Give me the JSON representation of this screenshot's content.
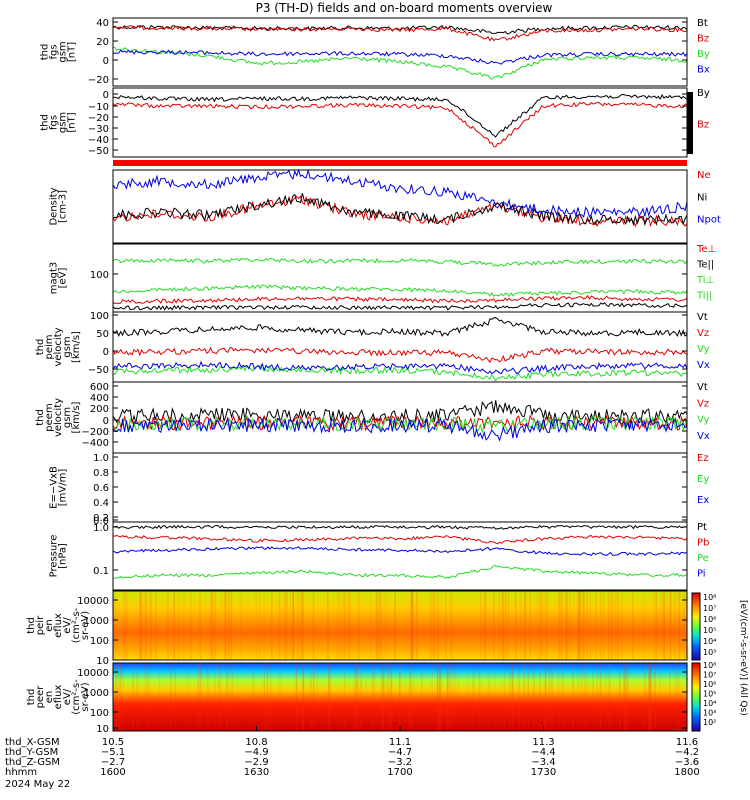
{
  "title": "P3 (TH-D) fields and on-board moments overview",
  "colors": {
    "black": "#000000",
    "red": "#e00000",
    "green": "#22dd22",
    "blue": "#0000e0"
  },
  "panels": [
    {
      "id": "fgs",
      "ylabel": [
        "thd",
        "fgs",
        "gsm",
        "[nT]"
      ],
      "ticks": [
        "40",
        "20",
        "0",
        "−20"
      ],
      "legend": [
        {
          "text": "Bt",
          "color": "black"
        },
        {
          "text": "Bz",
          "color": "red"
        },
        {
          "text": "By",
          "color": "green"
        },
        {
          "text": "Bx",
          "color": "blue"
        }
      ]
    },
    {
      "id": "fgs2",
      "ylabel": [
        "thd",
        "fgs",
        "gsm",
        "[nT]"
      ],
      "ticks": [
        "0",
        "−10",
        "−20",
        "−30",
        "−40",
        "−50"
      ],
      "legend": [
        {
          "text": "By",
          "color": "black"
        },
        {
          "text": "Bz",
          "color": "red"
        }
      ]
    },
    {
      "id": "dens",
      "ylabel": [
        "Density",
        "[cm-3]"
      ],
      "ticks": [],
      "legend": [
        {
          "text": "Ne",
          "color": "red"
        },
        {
          "text": "Ni",
          "color": "black"
        },
        {
          "text": "Npot",
          "color": "blue"
        }
      ]
    },
    {
      "id": "temp",
      "ylabel": [
        "magt3",
        "[eV]"
      ],
      "ticks": [
        "100"
      ],
      "legend": [
        {
          "text": "Te⊥",
          "color": "red"
        },
        {
          "text": "Te||",
          "color": "black"
        },
        {
          "text": "Ti⊥",
          "color": "green"
        },
        {
          "text": "Ti||",
          "color": "green"
        }
      ]
    },
    {
      "id": "vel1",
      "ylabel": [
        "thd",
        "peim",
        "velocity",
        "gsm",
        "[km/s]"
      ],
      "ticks": [
        "100",
        "50",
        "0",
        "−50"
      ],
      "legend": [
        {
          "text": "Vt",
          "color": "black"
        },
        {
          "text": "Vz",
          "color": "red"
        },
        {
          "text": "Vy",
          "color": "green"
        },
        {
          "text": "Vx",
          "color": "blue"
        }
      ]
    },
    {
      "id": "vel2",
      "ylabel": [
        "thd",
        "peem",
        "velocity",
        "gsm",
        "[km/s]"
      ],
      "ticks": [
        "600",
        "400",
        "200",
        "0",
        "−200",
        "−400"
      ],
      "legend": [
        {
          "text": "Vt",
          "color": "black"
        },
        {
          "text": "Vz",
          "color": "red"
        },
        {
          "text": "Vy",
          "color": "green"
        },
        {
          "text": "Vx",
          "color": "blue"
        }
      ]
    },
    {
      "id": "efield",
      "ylabel": [
        "E=−VxB",
        "[mV/m]"
      ],
      "ticks": [
        "1.0",
        "0.8",
        "0.6",
        "0.4",
        "0.2",
        "0.0"
      ],
      "legend": [
        {
          "text": "Ez",
          "color": "red"
        },
        {
          "text": "Ey",
          "color": "green"
        },
        {
          "text": "Ex",
          "color": "blue"
        }
      ]
    },
    {
      "id": "press",
      "ylabel": [
        "Pressure",
        "[nPa]"
      ],
      "ticks": [
        "1.0",
        "0.1"
      ],
      "legend": [
        {
          "text": "Pt",
          "color": "black"
        },
        {
          "text": "Pb",
          "color": "red"
        },
        {
          "text": "Pe",
          "color": "green"
        },
        {
          "text": "Pi",
          "color": "blue"
        }
      ]
    },
    {
      "id": "ispec",
      "ylabel": [
        "thd",
        "peir",
        "en",
        "eflux",
        "eV/",
        "(cm²-s-",
        "sr-eV)"
      ],
      "ticks": [
        "10000",
        "1000",
        "100",
        "10"
      ],
      "legend": []
    },
    {
      "id": "espec",
      "ylabel": [
        "thd",
        "peer",
        "en",
        "eflux",
        "eV/",
        "(cm²-s-",
        "sr-eV)"
      ],
      "ticks": [
        "10000",
        "1000",
        "100",
        "10"
      ],
      "legend": []
    }
  ],
  "colorbar": {
    "label": "[eV/(cm²-s-sr-eV)] (All Qs)",
    "top_ticks": [
      "10⁸",
      "10⁷",
      "10⁶",
      "10⁵",
      "10⁴",
      "10³"
    ],
    "bottom_ticks": [
      "10⁸",
      "10⁷",
      "10⁶",
      "10⁵",
      "10⁴",
      "10³",
      "10²"
    ]
  },
  "footer": {
    "rows": [
      {
        "label": "thd_X-GSM",
        "values": [
          "10.5",
          "10.8",
          "11.1",
          "11.3",
          "11.6"
        ]
      },
      {
        "label": "thd_Y-GSM",
        "values": [
          "−5.1",
          "−4.9",
          "−4.7",
          "−4.4",
          "−4.2"
        ]
      },
      {
        "label": "thd_Z-GSM",
        "values": [
          "−2.7",
          "−2.9",
          "−3.2",
          "−3.4",
          "−3.6"
        ]
      },
      {
        "label": "hhmm",
        "values": [
          "1600",
          "1630",
          "1700",
          "1730",
          "1800"
        ]
      }
    ],
    "date": "2024 May 22"
  },
  "chart_data": {
    "type": "line",
    "title": "P3 (TH-D) fields and on-board moments overview",
    "x_label": "hhmm",
    "x_ticks": [
      "1600",
      "1630",
      "1700",
      "1730",
      "1800"
    ],
    "x_range": [
      "16:00",
      "18:00"
    ],
    "panels": [
      {
        "name": "thd fgs gsm [nT]",
        "ylim": [
          -40,
          50
        ],
        "series": [
          {
            "name": "Bt",
            "values": [
              38,
              38,
              37,
              36,
              36,
              37,
              36,
              38,
              30,
              36,
              37,
              38,
              37
            ]
          },
          {
            "name": "Bz",
            "values": [
              38,
              37,
              36,
              35,
              35,
              36,
              34,
              36,
              20,
              33,
              34,
              36,
              34
            ]
          },
          {
            "name": "By",
            "values": [
              10,
              5,
              0,
              -10,
              -8,
              -3,
              -8,
              -15,
              -30,
              -5,
              -2,
              -3,
              -6
            ]
          },
          {
            "name": "Bx",
            "values": [
              5,
              5,
              4,
              2,
              3,
              3,
              2,
              0,
              -10,
              1,
              2,
              2,
              2
            ]
          }
        ]
      },
      {
        "name": "thd fgs gsm [nT]",
        "ylim": [
          -60,
          5
        ],
        "series": [
          {
            "name": "By",
            "values": [
              -3,
              -5,
              -6,
              -5,
              -5,
              -4,
              -5,
              -6,
              -40,
              -4,
              -3,
              -3,
              -4
            ]
          },
          {
            "name": "Bz",
            "values": [
              -10,
              -12,
              -12,
              -13,
              -12,
              -11,
              -12,
              -14,
              -50,
              -12,
              -10,
              -11,
              -12
            ]
          }
        ]
      },
      {
        "name": "Density [cm-3]",
        "ylim": [
          0,
          1
        ],
        "series": [
          {
            "name": "Ne",
            "values": [
              0.35,
              0.4,
              0.35,
              0.5,
              0.6,
              0.4,
              0.35,
              0.3,
              0.5,
              0.35,
              0.3,
              0.3,
              0.3
            ]
          },
          {
            "name": "Ni",
            "values": [
              0.38,
              0.42,
              0.38,
              0.52,
              0.62,
              0.42,
              0.37,
              0.32,
              0.52,
              0.37,
              0.32,
              0.32,
              0.33
            ]
          },
          {
            "name": "Npot",
            "values": [
              0.8,
              0.85,
              0.8,
              0.9,
              0.95,
              0.85,
              0.75,
              0.7,
              0.55,
              0.45,
              0.42,
              0.42,
              0.5
            ]
          }
        ]
      },
      {
        "name": "magt3 [eV]",
        "ylim": [
          0,
          200
        ],
        "series": [
          {
            "name": "Te⊥",
            "values": [
              30,
              32,
              35,
              38,
              40,
              38,
              35,
              33,
              35,
              40,
              42,
              38,
              36
            ]
          },
          {
            "name": "Te||",
            "values": [
              12,
              12,
              13,
              14,
              14,
              13,
              13,
              12,
              15,
              20,
              22,
              20,
              18
            ]
          },
          {
            "name": "Ti⊥",
            "values": [
              150,
              152,
              150,
              155,
              150,
              150,
              152,
              148,
              140,
              145,
              148,
              150,
              148
            ]
          },
          {
            "name": "Ti||",
            "values": [
              60,
              65,
              70,
              75,
              70,
              68,
              66,
              62,
              50,
              55,
              58,
              60,
              58
            ]
          }
        ]
      },
      {
        "name": "thd peim velocity gsm [km/s]",
        "ylim": [
          -70,
          110
        ],
        "series": [
          {
            "name": "Vt",
            "values": [
              55,
              60,
              65,
              70,
              62,
              58,
              60,
              55,
              90,
              60,
              55,
              58,
              55
            ]
          },
          {
            "name": "Vz",
            "values": [
              5,
              8,
              10,
              12,
              8,
              6,
              5,
              5,
              -15,
              10,
              8,
              6,
              8
            ]
          },
          {
            "name": "Vy",
            "values": [
              -45,
              -40,
              -38,
              -35,
              -40,
              -42,
              -40,
              -45,
              -60,
              -50,
              -48,
              -45,
              -50
            ]
          },
          {
            "name": "Vx",
            "values": [
              -30,
              -28,
              -25,
              -30,
              -35,
              -32,
              -30,
              -28,
              -45,
              -35,
              -30,
              -28,
              -30
            ]
          }
        ]
      },
      {
        "name": "thd peem velocity gsm [km/s]",
        "ylim": [
          -500,
          700
        ],
        "series": [
          {
            "name": "Vt",
            "values": [
              120,
              130,
              140,
              150,
              130,
              120,
              130,
              125,
              300,
              140,
              130,
              125,
              120
            ]
          },
          {
            "name": "Vz",
            "values": [
              10,
              5,
              0,
              10,
              5,
              0,
              5,
              10,
              30,
              5,
              0,
              5,
              0
            ]
          },
          {
            "name": "Vy",
            "values": [
              0,
              -5,
              0,
              5,
              0,
              -5,
              0,
              0,
              -60,
              0,
              5,
              0,
              0
            ]
          },
          {
            "name": "Vx",
            "values": [
              -30,
              -40,
              -35,
              -40,
              -30,
              -35,
              -40,
              -30,
              -200,
              -40,
              -35,
              -30,
              -35
            ]
          }
        ]
      },
      {
        "name": "E=−VxB [mV/m]",
        "ylim": [
          0,
          1.0
        ],
        "series": []
      },
      {
        "name": "Pressure [nPa]",
        "ylim": [
          0.05,
          1.2
        ],
        "y_scale": "log",
        "series": [
          {
            "name": "Pt",
            "values": [
              0.95,
              0.95,
              0.96,
              0.95,
              0.94,
              0.95,
              0.95,
              0.94,
              0.9,
              0.95,
              0.95,
              0.95,
              0.94
            ]
          },
          {
            "name": "Pb",
            "values": [
              0.6,
              0.58,
              0.55,
              0.5,
              0.52,
              0.56,
              0.55,
              0.6,
              0.45,
              0.55,
              0.6,
              0.58,
              0.55
            ]
          },
          {
            "name": "Pe",
            "values": [
              0.09,
              0.1,
              0.1,
              0.11,
              0.12,
              0.1,
              0.1,
              0.09,
              0.15,
              0.12,
              0.11,
              0.1,
              0.1
            ]
          },
          {
            "name": "Pi",
            "values": [
              0.3,
              0.32,
              0.34,
              0.36,
              0.35,
              0.33,
              0.32,
              0.3,
              0.35,
              0.28,
              0.27,
              0.27,
              0.28
            ]
          }
        ]
      }
    ]
  }
}
